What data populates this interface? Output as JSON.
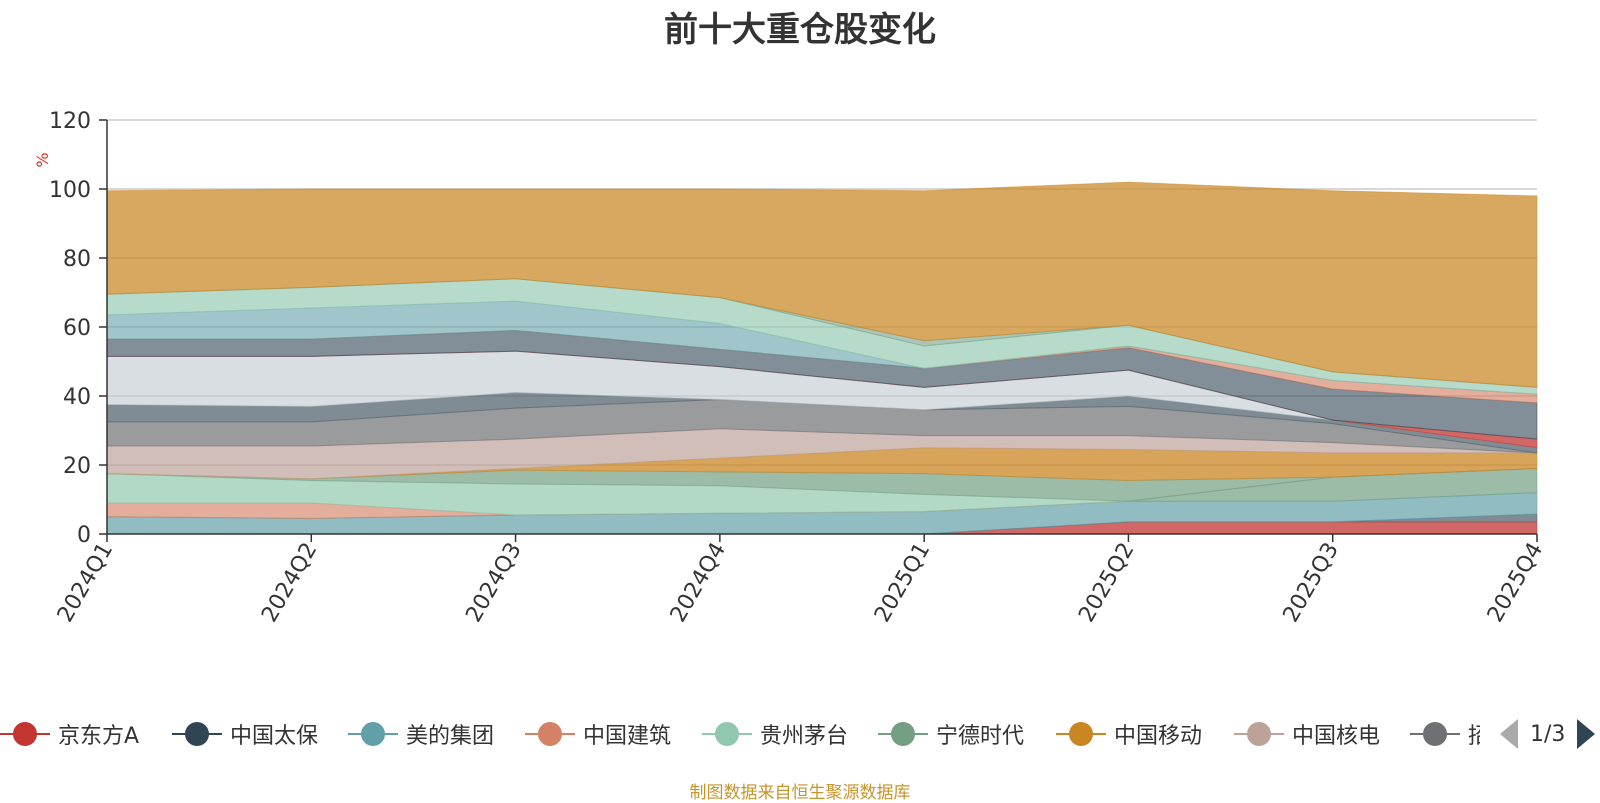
{
  "title": "前十大重仓股变化",
  "source_note": "制图数据来自恒生聚源数据库",
  "pager": {
    "page": "1/3"
  },
  "chart_data": {
    "type": "area",
    "stacked": true,
    "ylabel": "%",
    "ylim": [
      0,
      120
    ],
    "yticks": [
      0,
      20,
      40,
      60,
      80,
      100,
      120
    ],
    "grid": true,
    "legend_position": "bottom",
    "categories": [
      "2024Q1",
      "2024Q2",
      "2024Q3",
      "2024Q4",
      "2025Q1",
      "2025Q2",
      "2025Q3",
      "2025Q4"
    ],
    "series": [
      {
        "name": "京东方A",
        "color": "#c23531",
        "values": [
          0,
          0,
          0,
          0,
          0,
          3.5,
          3.5,
          3.5
        ],
        "opacity": 0.75
      },
      {
        "name": "",
        "color": "#546570",
        "values": [
          0,
          0,
          0,
          0,
          0,
          0,
          0,
          2.3
        ],
        "opacity": 0.75
      },
      {
        "name": "美的集团",
        "color": "#61a0a8",
        "values": [
          5,
          4.5,
          5.5,
          6,
          6.5,
          6,
          6,
          6.2
        ],
        "opacity": 0.7
      },
      {
        "name": "宁德时代",
        "color": "#749f83",
        "values": [
          0,
          0,
          0,
          0,
          0,
          0,
          7,
          7
        ],
        "opacity": 0.7
      },
      {
        "name": "中国建筑",
        "color": "#d48265",
        "values": [
          4,
          4.5,
          0,
          0,
          0,
          0,
          0,
          0
        ],
        "opacity": 0.65
      },
      {
        "name": "贵州茅台",
        "color": "#91c7ae",
        "values": [
          8.5,
          6.5,
          9,
          8,
          5,
          0,
          0,
          0
        ],
        "opacity": 0.7
      },
      {
        "name": "宁德时代",
        "color": "#749f83",
        "values": [
          0,
          0.5,
          4,
          4,
          6,
          6,
          0,
          0
        ],
        "opacity": 0.7
      },
      {
        "name": "中国移动",
        "color": "#ca8622",
        "values": [
          0,
          0,
          0.5,
          4,
          7.5,
          9,
          7,
          4.5
        ],
        "opacity": 0.75
      },
      {
        "name": "中国核电",
        "color": "#bda29a",
        "values": [
          8,
          9.5,
          8.5,
          8.5,
          3.5,
          4,
          3,
          0
        ],
        "opacity": 0.7
      },
      {
        "name": "",
        "color": "#6e7074",
        "values": [
          7,
          7,
          9,
          8.5,
          7.5,
          8.5,
          5.5,
          0
        ],
        "opacity": 0.7
      },
      {
        "name": "",
        "color": "#546570",
        "values": [
          5,
          4.5,
          4.5,
          0,
          0,
          3,
          1,
          1.5
        ],
        "opacity": 0.75
      },
      {
        "name": "",
        "color": "#c4ccd3",
        "values": [
          14,
          14.5,
          12,
          9.5,
          6.5,
          7.5,
          0,
          0
        ],
        "opacity": 0.65
      },
      {
        "name": "",
        "color": "#c23531",
        "values": [
          0,
          0,
          0,
          0,
          0,
          0,
          0,
          2.5
        ],
        "opacity": 0.75
      },
      {
        "name": "中国太保",
        "color": "#2f4554",
        "values": [
          5,
          5,
          6,
          5,
          5.5,
          6.5,
          9,
          10.5
        ],
        "opacity": 0.6
      },
      {
        "name": "中国建筑",
        "color": "#d48265",
        "values": [
          0,
          0,
          0,
          0,
          0,
          0.5,
          2.5,
          2.5
        ],
        "opacity": 0.65
      },
      {
        "name": "美的集团",
        "color": "#61a0a8",
        "values": [
          7,
          9,
          8.5,
          7.5,
          0,
          0,
          0,
          0
        ],
        "opacity": 0.6
      },
      {
        "name": "贵州茅台",
        "color": "#91c7ae",
        "values": [
          6,
          6,
          6.5,
          7.5,
          6.5,
          6,
          2.5,
          2
        ],
        "opacity": 0.65
      },
      {
        "name": "",
        "color": "#749f83",
        "values": [
          0,
          0,
          0,
          0,
          1.5,
          0,
          0,
          0
        ],
        "opacity": 0.6
      },
      {
        "name": "",
        "color": "#ca8622",
        "values": [
          30,
          28.5,
          26,
          31.5,
          43.5,
          41.5,
          52.5,
          55.5
        ],
        "opacity": 0.72
      }
    ],
    "legend": [
      {
        "name": "京东方A",
        "color": "#c23531"
      },
      {
        "name": "中国太保",
        "color": "#2f4554"
      },
      {
        "name": "美的集团",
        "color": "#61a0a8"
      },
      {
        "name": "中国建筑",
        "color": "#d48265"
      },
      {
        "name": "贵州茅台",
        "color": "#91c7ae"
      },
      {
        "name": "宁德时代",
        "color": "#749f83"
      },
      {
        "name": "中国移动",
        "color": "#ca8622"
      },
      {
        "name": "中国核电",
        "color": "#bda29a"
      },
      {
        "name": "招",
        "color": "#6e7074"
      }
    ]
  }
}
